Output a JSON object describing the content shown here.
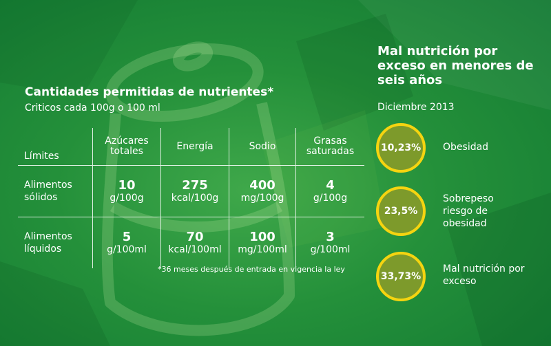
{
  "left": {
    "title": "Cantidades permitidas de nutrientes*",
    "subtitle": "Criticos cada 100g o 100 ml",
    "table": {
      "corner_label": "Límites",
      "columns": [
        "Azúcares totales",
        "Energía",
        "Sodio",
        "Grasas saturadas"
      ],
      "rows": [
        {
          "label": "Alimentos sólidos",
          "cells": [
            {
              "value": "10",
              "unit": "g/100g"
            },
            {
              "value": "275",
              "unit": "kcal/100g"
            },
            {
              "value": "400",
              "unit": "mg/100g"
            },
            {
              "value": "4",
              "unit": "g/100g"
            }
          ]
        },
        {
          "label": "Alimentos líquidos",
          "cells": [
            {
              "value": "5",
              "unit": "g/100ml"
            },
            {
              "value": "70",
              "unit": "kcal/100ml"
            },
            {
              "value": "100",
              "unit": "mg/100ml"
            },
            {
              "value": "3",
              "unit": "g/100ml"
            }
          ]
        }
      ]
    },
    "footnote": "*36 meses después de entrada en vigencia la ley"
  },
  "right": {
    "title": "Mal nutrición por exceso en menores de seis años",
    "date": "Diciembre 2013",
    "stats": [
      {
        "value": "10,23%",
        "label": "Obesidad"
      },
      {
        "value": "23,5%",
        "label": "Sobrepeso riesgo de obesidad"
      },
      {
        "value": "33,73%",
        "label": "Mal nutrición por exceso"
      }
    ]
  },
  "colors": {
    "background": "#24903a",
    "circle_border": "#f5d410",
    "circle_fill": "#7d9a2b",
    "text": "#ffffff"
  }
}
